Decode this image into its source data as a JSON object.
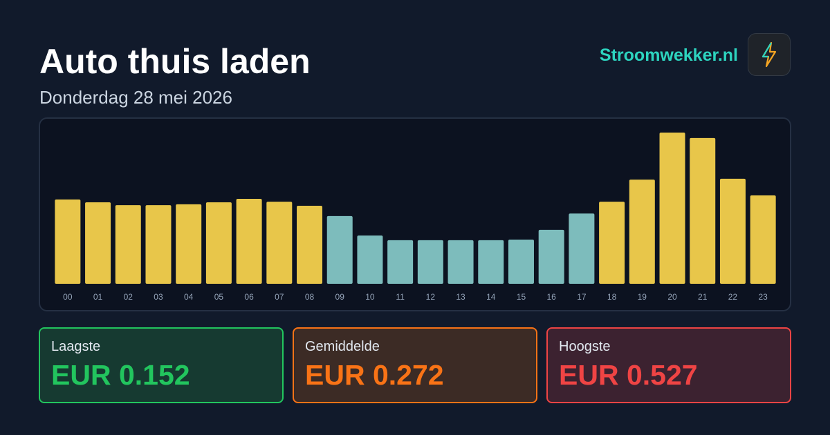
{
  "header": {
    "title": "Auto thuis laden",
    "date": "Donderdag 28 mei 2026",
    "brand": "Stroomwekker.nl"
  },
  "chart_data": {
    "type": "bar",
    "categories": [
      "00",
      "01",
      "02",
      "03",
      "04",
      "05",
      "06",
      "07",
      "08",
      "09",
      "10",
      "11",
      "12",
      "13",
      "14",
      "15",
      "16",
      "17",
      "18",
      "19",
      "20",
      "21",
      "22",
      "23"
    ],
    "values": [
      0.294,
      0.284,
      0.274,
      0.274,
      0.277,
      0.284,
      0.296,
      0.286,
      0.272,
      0.236,
      0.168,
      0.152,
      0.152,
      0.152,
      0.152,
      0.154,
      0.188,
      0.245,
      0.286,
      0.363,
      0.527,
      0.508,
      0.366,
      0.308
    ],
    "colors": [
      "#e8c64a",
      "#e8c64a",
      "#e8c64a",
      "#e8c64a",
      "#e8c64a",
      "#e8c64a",
      "#e8c64a",
      "#e8c64a",
      "#e8c64a",
      "#7dbcbc",
      "#7dbcbc",
      "#7dbcbc",
      "#7dbcbc",
      "#7dbcbc",
      "#7dbcbc",
      "#7dbcbc",
      "#7dbcbc",
      "#7dbcbc",
      "#e8c64a",
      "#e8c64a",
      "#e8c64a",
      "#e8c64a",
      "#e8c64a",
      "#e8c64a"
    ]
  },
  "stats": [
    {
      "label": "Laagste",
      "price": "EUR 0.152"
    },
    {
      "label": "Gemiddelde",
      "price": "EUR 0.272"
    },
    {
      "label": "Hoogste",
      "price": "EUR 0.527"
    }
  ]
}
